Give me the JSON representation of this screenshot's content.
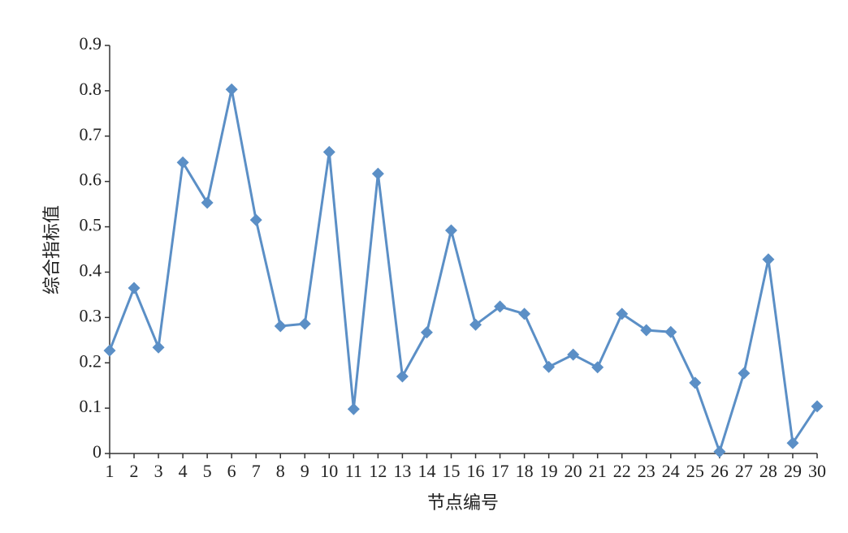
{
  "chart_data": {
    "type": "line",
    "x_label": "节点编号",
    "y_label": "综合指标值",
    "x": [
      1,
      2,
      3,
      4,
      5,
      6,
      7,
      8,
      9,
      10,
      11,
      12,
      13,
      14,
      15,
      16,
      17,
      18,
      19,
      20,
      21,
      22,
      23,
      24,
      25,
      26,
      27,
      28,
      29,
      30
    ],
    "series": [
      {
        "name": "综合指标值",
        "color": "#5b8fc6",
        "values": [
          0.227,
          0.365,
          0.234,
          0.642,
          0.553,
          0.803,
          0.515,
          0.281,
          0.286,
          0.665,
          0.098,
          0.617,
          0.17,
          0.267,
          0.492,
          0.284,
          0.324,
          0.308,
          0.191,
          0.218,
          0.19,
          0.308,
          0.272,
          0.268,
          0.156,
          0.004,
          0.177,
          0.428,
          0.023,
          0.104
        ]
      }
    ],
    "xlim": [
      1,
      30
    ],
    "xticks": [
      1,
      2,
      3,
      4,
      5,
      6,
      7,
      8,
      9,
      10,
      11,
      12,
      13,
      14,
      15,
      16,
      17,
      18,
      19,
      20,
      21,
      22,
      23,
      24,
      25,
      26,
      27,
      28,
      29,
      30
    ],
    "ylim": [
      0,
      0.9
    ],
    "yticks": [
      0,
      0.1,
      0.2,
      0.3,
      0.4,
      0.5,
      0.6,
      0.7,
      0.8,
      0.9
    ]
  }
}
